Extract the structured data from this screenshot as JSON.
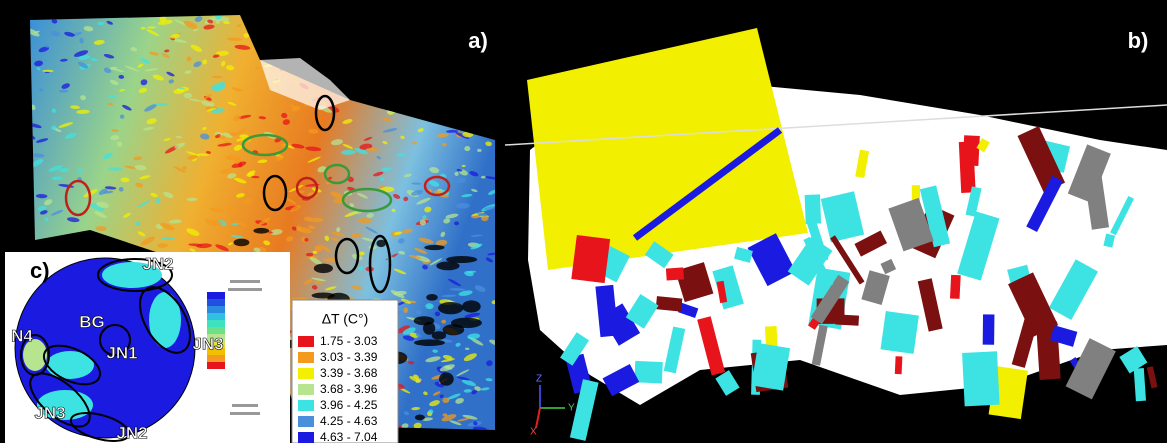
{
  "panels": {
    "a": {
      "label": "a)"
    },
    "b": {
      "label": "b)"
    },
    "c": {
      "label": "c)"
    }
  },
  "stereonet": {
    "labels": [
      "JN2",
      "JN3",
      "N4",
      "BG",
      "JN1",
      "JN3",
      "JN2"
    ]
  },
  "legend": {
    "title": "ΔT (C°)",
    "items": [
      {
        "label": "1.75 - 3.03",
        "color": "#e8141b"
      },
      {
        "label": "3.03 - 3.39",
        "color": "#f39a1f"
      },
      {
        "label": "3.39 - 3.68",
        "color": "#f2f000"
      },
      {
        "label": "3.68 - 3.96",
        "color": "#b6e48f"
      },
      {
        "label": "3.96 - 4.25",
        "color": "#3de3e3"
      },
      {
        "label": "4.25 - 4.63",
        "color": "#4a8fdc"
      },
      {
        "label": "4.63 - 7.04",
        "color": "#1a1ae0"
      }
    ]
  },
  "axes_triad": [
    "Z",
    "Y",
    "X"
  ]
}
